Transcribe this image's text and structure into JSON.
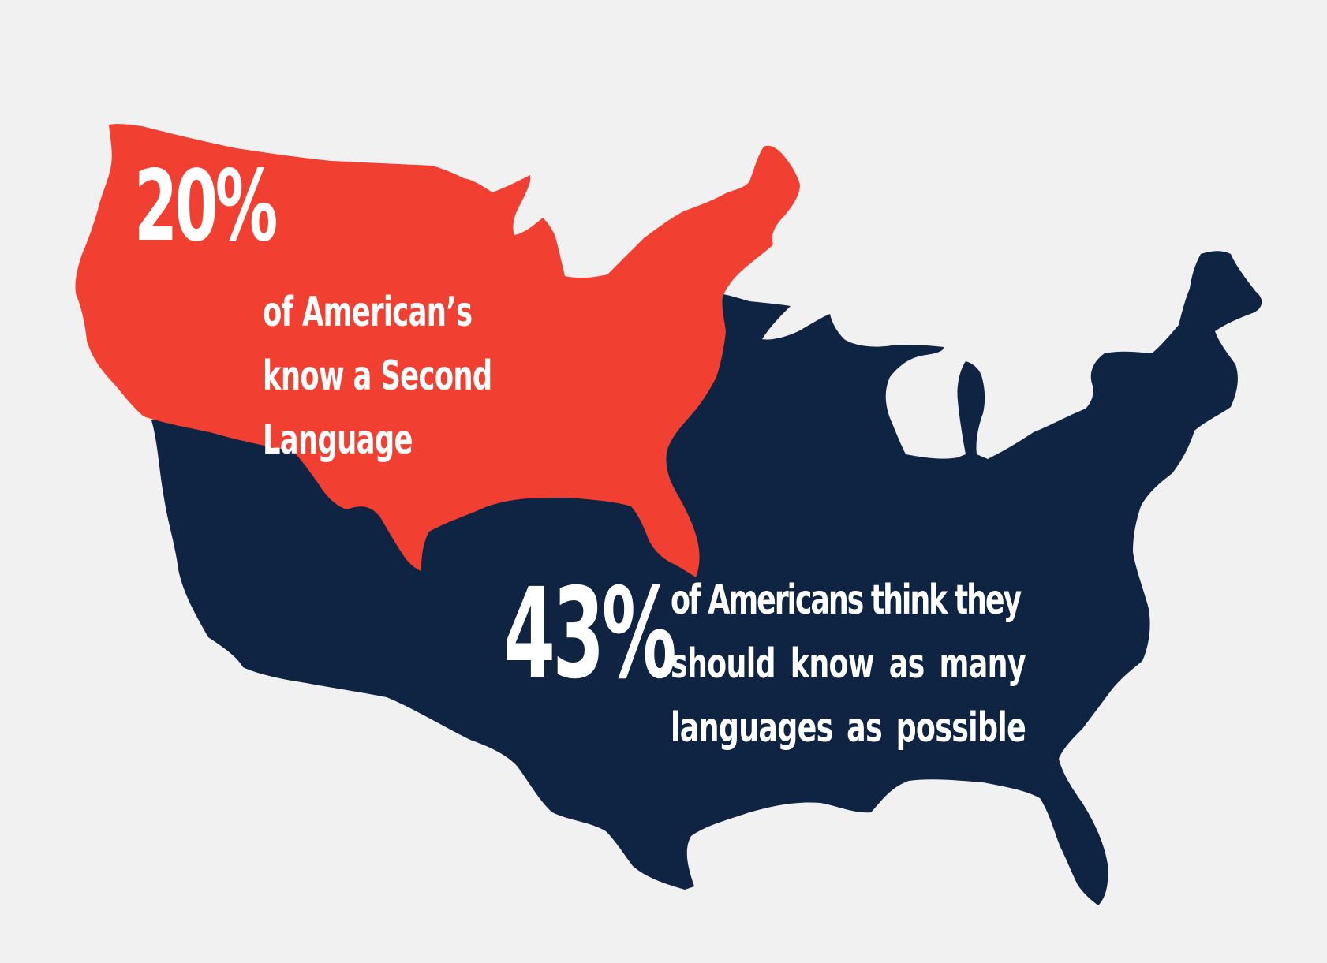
{
  "colors": {
    "background": "#f2f1f1",
    "map_navy": "#0f2342",
    "map_red": "#f14032",
    "text": "#ffffff"
  },
  "stat_1": {
    "value": "20%",
    "lines": [
      "of American’s",
      "know a Second",
      "Language"
    ]
  },
  "stat_2": {
    "value": "43%",
    "lines": [
      "of Americans think they",
      "should know as many",
      "languages as possible"
    ]
  }
}
